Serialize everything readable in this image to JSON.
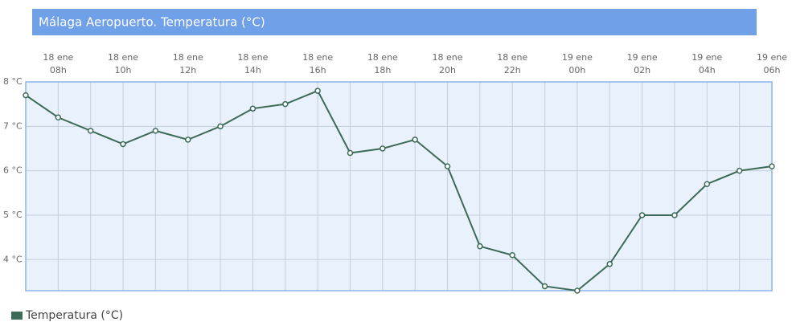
{
  "chart_data": {
    "type": "line",
    "title": "Málaga Aeropuerto. Temperatura (°C)",
    "categories": [
      null,
      [
        "18 ene",
        "08h"
      ],
      null,
      [
        "18 ene",
        "10h"
      ],
      null,
      [
        "18 ene",
        "12h"
      ],
      null,
      [
        "18 ene",
        "14h"
      ],
      null,
      [
        "18 ene",
        "16h"
      ],
      null,
      [
        "18 ene",
        "18h"
      ],
      null,
      [
        "18 ene",
        "20h"
      ],
      null,
      [
        "18 ene",
        "22h"
      ],
      null,
      [
        "19 ene",
        "00h"
      ],
      null,
      [
        "19 ene",
        "02h"
      ],
      null,
      [
        "19 ene",
        "04h"
      ],
      null,
      [
        "19 ene",
        "06h"
      ]
    ],
    "series": [
      {
        "name": "Temperatura (°C)",
        "color": "#3d6b58",
        "values": [
          7.7,
          7.2,
          6.9,
          6.6,
          6.9,
          6.7,
          7.0,
          7.4,
          7.5,
          7.8,
          6.4,
          6.5,
          6.7,
          6.1,
          4.3,
          4.1,
          3.4,
          3.3,
          3.9,
          5.0,
          5.0,
          5.7,
          6.0,
          6.1
        ]
      }
    ],
    "ylim": [
      3.3,
      8
    ],
    "yticks": [
      {
        "value": 4,
        "label": "4 °C"
      },
      {
        "value": 5,
        "label": "5 °C"
      },
      {
        "value": 6,
        "label": "6 °C"
      },
      {
        "value": 7,
        "label": "7 °C"
      },
      {
        "value": 8,
        "label": "8 °C"
      }
    ],
    "grid": true
  }
}
